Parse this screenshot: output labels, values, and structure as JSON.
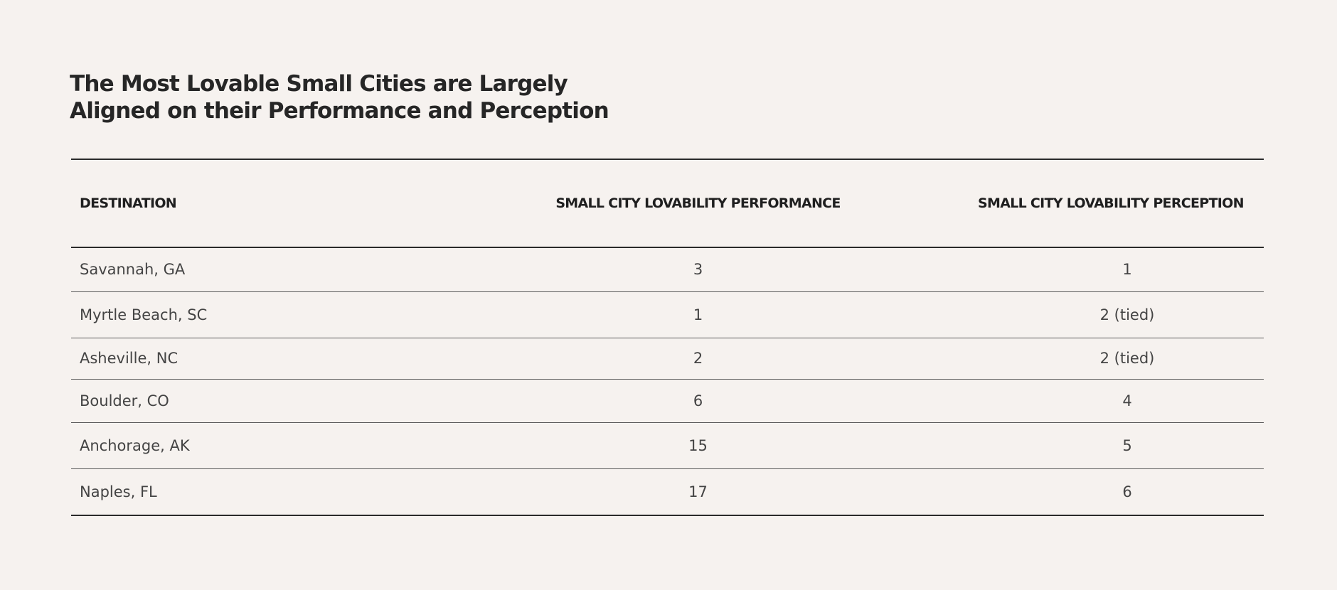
{
  "title": {
    "line1": "The Most Lovable Small Cities are Largely",
    "line2": "Aligned on their Performance and Perception"
  },
  "table": {
    "headers": [
      "DESTINATION",
      "SMALL CITY LOVABILITY PERFORMANCE",
      "SMALL CITY LOVABILITY PERCEPTION"
    ],
    "rows": [
      {
        "destination": "Savannah, GA",
        "performance": "3",
        "perception": "1"
      },
      {
        "destination": "Myrtle Beach, SC",
        "performance": "1",
        "perception": "2 (tied)"
      },
      {
        "destination": "Asheville, NC",
        "performance": "2",
        "perception": "2 (tied)"
      },
      {
        "destination": "Boulder, CO",
        "performance": "6",
        "perception": "4"
      },
      {
        "destination": "Anchorage, AK",
        "performance": "15",
        "perception": "5"
      },
      {
        "destination": "Naples, FL",
        "performance": "17",
        "perception": "6"
      }
    ]
  }
}
